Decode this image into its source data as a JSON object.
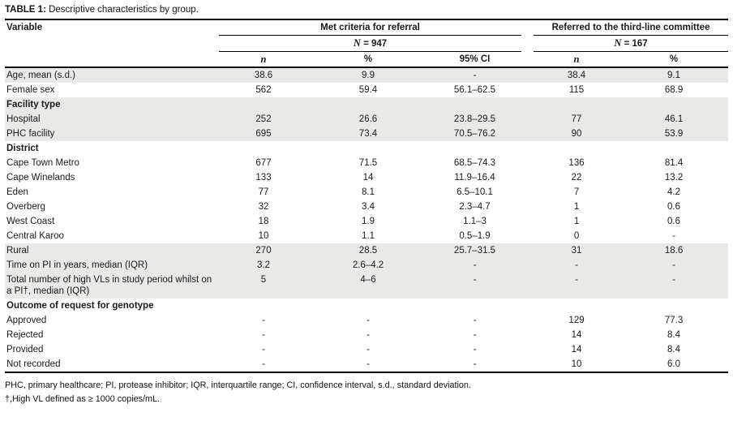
{
  "title": {
    "prefix": "TABLE 1:",
    "text": " Descriptive characteristics by group."
  },
  "header": {
    "variable": "Variable",
    "group1": {
      "title": "Met criteria for referral",
      "n_italic": "N",
      "n_rest": " = 947",
      "col_n": "n",
      "col_pct": "%",
      "col_ci": "95% CI"
    },
    "group2": {
      "title": "Referred to the third-line committee",
      "n_italic": "N",
      "n_rest": " = 167",
      "col_n": "n",
      "col_pct": "%"
    }
  },
  "rows": [
    {
      "label": "Age, mean (s.d.)",
      "bold": false,
      "shade": true,
      "cells": [
        "38.6",
        "9.9",
        "-",
        "38.4",
        "9.1"
      ]
    },
    {
      "label": "Female sex",
      "bold": false,
      "shade": false,
      "cells": [
        "562",
        "59.4",
        "56.1–62.5",
        "115",
        "68.9"
      ]
    },
    {
      "label": "Facility type",
      "bold": true,
      "shade": true,
      "cells": [
        "",
        "",
        "",
        "",
        ""
      ]
    },
    {
      "label": "Hospital",
      "bold": false,
      "shade": true,
      "cells": [
        "252",
        "26.6",
        "23.8–29.5",
        "77",
        "46.1"
      ]
    },
    {
      "label": "PHC facility",
      "bold": false,
      "shade": true,
      "cells": [
        "695",
        "73.4",
        "70.5–76.2",
        "90",
        "53.9"
      ]
    },
    {
      "label": "District",
      "bold": true,
      "shade": false,
      "cells": [
        "",
        "",
        "",
        "",
        ""
      ]
    },
    {
      "label": "Cape Town Metro",
      "bold": false,
      "shade": false,
      "cells": [
        "677",
        "71.5",
        "68.5–74.3",
        "136",
        "81.4"
      ]
    },
    {
      "label": "Cape Winelands",
      "bold": false,
      "shade": false,
      "cells": [
        "133",
        "14",
        "11.9–16.4",
        "22",
        "13.2"
      ]
    },
    {
      "label": "Eden",
      "bold": false,
      "shade": false,
      "cells": [
        "77",
        "8.1",
        "6.5–10.1",
        "7",
        "4.2"
      ]
    },
    {
      "label": "Overberg",
      "bold": false,
      "shade": false,
      "cells": [
        "32",
        "3.4",
        "2.3–4.7",
        "1",
        "0.6"
      ]
    },
    {
      "label": "West Coast",
      "bold": false,
      "shade": false,
      "cells": [
        "18",
        "1.9",
        "1.1–3",
        "1",
        "0.6"
      ]
    },
    {
      "label": "Central Karoo",
      "bold": false,
      "shade": false,
      "cells": [
        "10",
        "1.1",
        "0.5–1.9",
        "0",
        "-"
      ]
    },
    {
      "label": "Rural",
      "bold": false,
      "shade": true,
      "cells": [
        "270",
        "28.5",
        "25.7–31.5",
        "31",
        "18.6"
      ]
    },
    {
      "label": "Time on PI in years, median (IQR)",
      "bold": false,
      "shade": true,
      "cells": [
        "3.2",
        "2.6–4.2",
        "-",
        "-",
        "-"
      ]
    },
    {
      "label": "Total number of high VLs in study period whilst on a PI†, median (IQR)",
      "bold": false,
      "shade": true,
      "cells": [
        "5",
        "4–6",
        "-",
        "-",
        "-"
      ]
    },
    {
      "label": "Outcome of request for genotype",
      "bold": true,
      "shade": false,
      "cells": [
        "",
        "",
        "",
        "",
        ""
      ]
    },
    {
      "label": "Approved",
      "bold": false,
      "shade": false,
      "cells": [
        "-",
        "-",
        "-",
        "129",
        "77.3"
      ]
    },
    {
      "label": "Rejected",
      "bold": false,
      "shade": false,
      "cells": [
        "-",
        "-",
        "-",
        "14",
        "8.4"
      ]
    },
    {
      "label": "Provided",
      "bold": false,
      "shade": false,
      "cells": [
        "-",
        "-",
        "-",
        "14",
        "8.4"
      ]
    },
    {
      "label": "Not recorded",
      "bold": false,
      "shade": false,
      "cells": [
        "-",
        "-",
        "-",
        "10",
        "6.0"
      ]
    }
  ],
  "footnotes": [
    "PHC, primary healthcare; PI, protease inhibitor; IQR, interquartile range; CI, confidence interval, s.d., standard deviation.",
    "†,High VL defined as ≥ 1000 copies/mL."
  ],
  "colors": {
    "row_shade": "#e9e9e7",
    "rule": "#000000",
    "text": "#1a1a1a"
  }
}
